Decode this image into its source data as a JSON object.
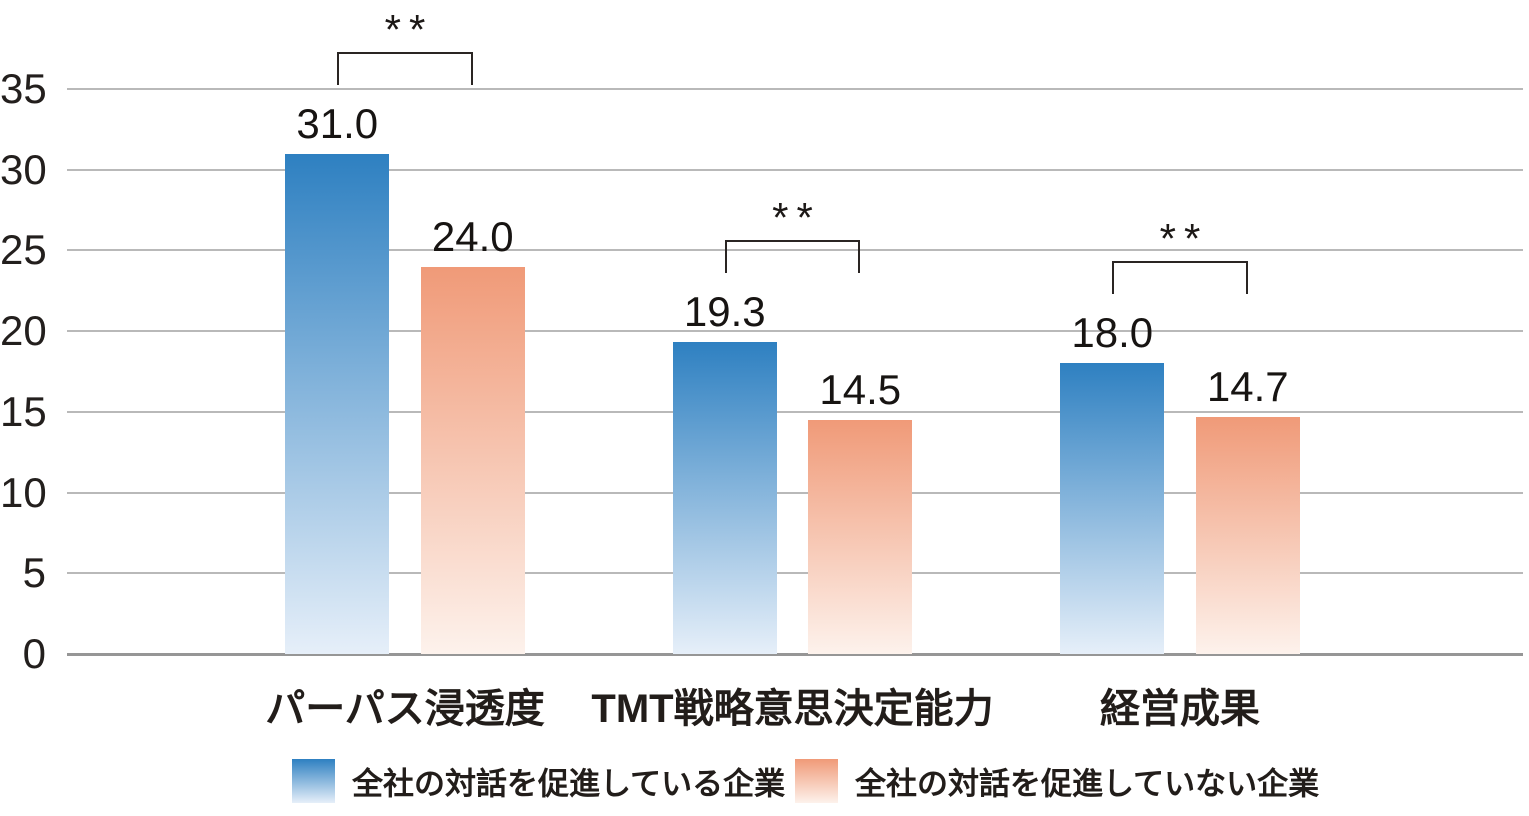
{
  "chart_data": {
    "type": "bar",
    "title": "",
    "categories": [
      "パーパス浸透度",
      "TMT戦略意思決定能力",
      "経営成果"
    ],
    "series": [
      {
        "name": "全社の対話を促進している企業",
        "values": [
          31.0,
          19.3,
          18.0
        ],
        "color_top": "#2e80c1",
        "color_bottom": "#e6eff9"
      },
      {
        "name": "全社の対話を促進していない企業",
        "values": [
          24.0,
          14.5,
          14.7
        ],
        "color_top": "#f09a78",
        "color_bottom": "#fdf2ec"
      }
    ],
    "value_label_decimals": 1,
    "significance": [
      "**",
      "**",
      "**"
    ],
    "ylim": [
      0,
      35
    ],
    "ytick_step": 5,
    "ytick_labels": [
      "0",
      "5",
      "10",
      "15",
      "20",
      "25",
      "30",
      "35"
    ],
    "grid": true,
    "legend_position": "bottom"
  },
  "colors": {
    "grid": "#b9b9b9",
    "baseline": "#969696",
    "text": "#221d1a",
    "bracket": "#2a2523"
  }
}
